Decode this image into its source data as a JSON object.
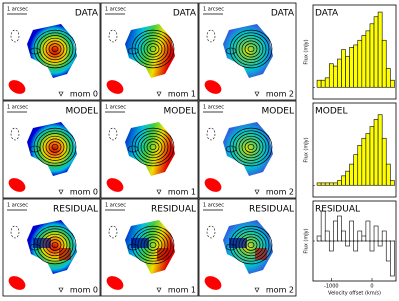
{
  "scale_label": "1 arcsec",
  "rows": [
    "DATA",
    "MODEL",
    "RESIDUAL"
  ],
  "moments": [
    "mom 0",
    "mom 1",
    "mom 2"
  ],
  "chart_data": [
    {
      "type": "histogram",
      "title": "DATA",
      "ylabel": "Flux (mJy)",
      "color": "#ffff00",
      "bins": [
        -1350,
        -1250,
        -1150,
        -1050,
        -950,
        -850,
        -750,
        -650,
        -550,
        -450,
        -350,
        -250,
        -150,
        -50,
        50,
        150,
        250,
        350,
        450,
        550
      ],
      "values": [
        3,
        3,
        4,
        10,
        9,
        12,
        16,
        13,
        17,
        18,
        20,
        22,
        24,
        27,
        30,
        32,
        20,
        8,
        3
      ],
      "xlim": [
        -1450,
        590
      ],
      "ylim": [
        -5,
        35
      ]
    },
    {
      "type": "histogram",
      "title": "MODEL",
      "ylabel": "Flux (mJy)",
      "color": "#ffff00",
      "bins": [
        -1350,
        -1250,
        -1150,
        -1050,
        -950,
        -850,
        -750,
        -650,
        -550,
        -450,
        -350,
        -250,
        -150,
        -50,
        50,
        150,
        250,
        350,
        450,
        550
      ],
      "values": [
        1,
        1,
        1,
        1,
        1,
        2,
        4,
        6,
        9,
        13,
        17,
        20,
        22,
        25,
        28,
        30,
        20,
        9,
        2
      ],
      "xlim": [
        -1450,
        590
      ],
      "ylim": [
        -5,
        35
      ]
    },
    {
      "type": "histogram",
      "title": "RESIDUAL",
      "ylabel": "Flux (mJy)",
      "xlabel": "Velocity offset (km/s)",
      "color": "#ffffff",
      "bins": [
        -1350,
        -1250,
        -1150,
        -1050,
        -950,
        -850,
        -750,
        -650,
        -550,
        -450,
        -350,
        -250,
        -150,
        -50,
        50,
        150,
        250,
        350,
        450,
        550
      ],
      "values": [
        0.5,
        3,
        1,
        -1,
        2,
        2.5,
        1,
        -0.5,
        2,
        -1,
        1,
        0.5,
        2,
        -1,
        1.5,
        -0.5,
        1,
        -2,
        -3.5
      ],
      "xlim": [
        -1450,
        590
      ],
      "ylim": [
        -4,
        4
      ],
      "xticks": [
        -1000,
        0
      ]
    }
  ]
}
